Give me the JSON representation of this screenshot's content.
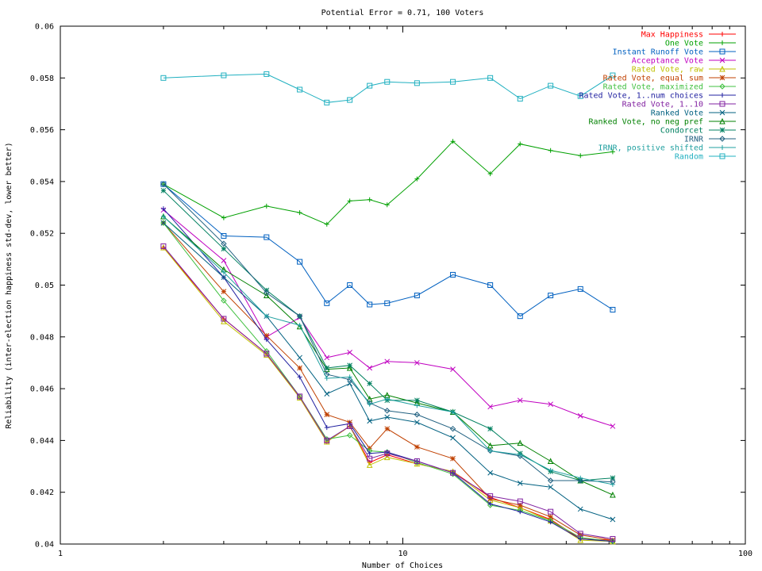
{
  "chart_data": {
    "type": "line",
    "title": "Potential Error = 0.71, 100 Voters",
    "xlabel": "Number of Choices",
    "ylabel": "Reliability (inter-election happiness std-dev, lower better)",
    "x_scale": "log",
    "xlim": [
      1,
      100
    ],
    "ylim": [
      0.04,
      0.06
    ],
    "x_ticks": [
      {
        "value": 1,
        "label": "1"
      },
      {
        "value": 10,
        "label": "10"
      },
      {
        "value": 100,
        "label": "100"
      }
    ],
    "y_ticks": [
      {
        "value": 0.04,
        "label": "0.04"
      },
      {
        "value": 0.042,
        "label": "0.042"
      },
      {
        "value": 0.044,
        "label": "0.044"
      },
      {
        "value": 0.046,
        "label": "0.046"
      },
      {
        "value": 0.048,
        "label": "0.048"
      },
      {
        "value": 0.05,
        "label": "0.05"
      },
      {
        "value": 0.052,
        "label": "0.052"
      },
      {
        "value": 0.054,
        "label": "0.054"
      },
      {
        "value": 0.056,
        "label": "0.056"
      },
      {
        "value": 0.058,
        "label": "0.058"
      },
      {
        "value": 0.06,
        "label": "0.06"
      }
    ],
    "legend_position": "top-right",
    "x": [
      2,
      3,
      4,
      5,
      6,
      7,
      8,
      9,
      11,
      14,
      18,
      22,
      27,
      33,
      41
    ],
    "series": [
      {
        "name": "Max Happiness",
        "color": "#ff0000",
        "marker": "plus",
        "values": [
          0.05145,
          0.0487,
          0.04735,
          0.04565,
          0.04395,
          0.04455,
          0.04315,
          0.04345,
          0.0431,
          0.0428,
          0.0418,
          0.0414,
          0.04095,
          0.0402,
          0.04015
        ]
      },
      {
        "name": "One Vote",
        "color": "#00a000",
        "marker": "plus",
        "values": [
          0.0539,
          0.0526,
          0.05305,
          0.0528,
          0.05235,
          0.05325,
          0.0533,
          0.0531,
          0.0541,
          0.05555,
          0.0543,
          0.05545,
          0.0552,
          0.055,
          0.05515
        ]
      },
      {
        "name": "Instant Runoff Vote",
        "color": "#0060c0",
        "marker": "square",
        "values": [
          0.0539,
          0.0519,
          0.05185,
          0.0509,
          0.0493,
          0.05,
          0.04925,
          0.0493,
          0.0496,
          0.0504,
          0.05,
          0.0488,
          0.0496,
          0.04985,
          0.04905
        ]
      },
      {
        "name": "Acceptance Vote",
        "color": "#c000c0",
        "marker": "x",
        "values": [
          0.0529,
          0.05095,
          0.048,
          0.04875,
          0.0472,
          0.0474,
          0.0468,
          0.04705,
          0.047,
          0.04675,
          0.0453,
          0.04555,
          0.0454,
          0.04495,
          0.04455
        ]
      },
      {
        "name": "Rated Vote, raw",
        "color": "#c0c000",
        "marker": "triangle",
        "values": [
          0.05145,
          0.0486,
          0.0473,
          0.04565,
          0.04395,
          0.04455,
          0.04305,
          0.04335,
          0.0431,
          0.0428,
          0.0417,
          0.0414,
          0.0409,
          0.04015,
          0.0401
        ]
      },
      {
        "name": "Rated Vote, equal sum",
        "color": "#c04000",
        "marker": "star",
        "values": [
          0.0524,
          0.04975,
          0.04805,
          0.0468,
          0.045,
          0.0447,
          0.0437,
          0.04445,
          0.04375,
          0.0433,
          0.04175,
          0.0415,
          0.04105,
          0.04035,
          0.04015
        ]
      },
      {
        "name": "Rated Vote, maximized",
        "color": "#40c040",
        "marker": "diamond",
        "values": [
          0.0524,
          0.0494,
          0.04745,
          0.0457,
          0.04405,
          0.0442,
          0.0436,
          0.04355,
          0.04315,
          0.0427,
          0.0415,
          0.0413,
          0.0409,
          0.04025,
          0.0401
        ]
      },
      {
        "name": "Rated Vote, 1..num choices",
        "color": "#2020a0",
        "marker": "plus",
        "values": [
          0.05295,
          0.0503,
          0.0479,
          0.04645,
          0.0445,
          0.04465,
          0.0435,
          0.04355,
          0.0432,
          0.04275,
          0.04155,
          0.04125,
          0.04085,
          0.0402,
          0.0401
        ]
      },
      {
        "name": "Rated Vote, 1..10",
        "color": "#8020a0",
        "marker": "square",
        "values": [
          0.0515,
          0.0487,
          0.04735,
          0.0457,
          0.044,
          0.04455,
          0.0433,
          0.0435,
          0.0432,
          0.04275,
          0.04185,
          0.04165,
          0.04125,
          0.0404,
          0.0402
        ]
      },
      {
        "name": "Ranked Vote",
        "color": "#006080",
        "marker": "x",
        "values": [
          0.0524,
          0.0503,
          0.0488,
          0.0472,
          0.0458,
          0.0462,
          0.04475,
          0.0449,
          0.0447,
          0.0441,
          0.04275,
          0.04235,
          0.0422,
          0.04135,
          0.04095
        ]
      },
      {
        "name": "Ranked Vote, no neg pref",
        "color": "#008000",
        "marker": "triangle",
        "values": [
          0.05265,
          0.0506,
          0.0496,
          0.0484,
          0.04675,
          0.0468,
          0.0456,
          0.04575,
          0.04545,
          0.0451,
          0.0438,
          0.0439,
          0.0432,
          0.04245,
          0.0419
        ]
      },
      {
        "name": "Condorcet",
        "color": "#008060",
        "marker": "star",
        "values": [
          0.05365,
          0.0514,
          0.0498,
          0.0488,
          0.0468,
          0.0469,
          0.0462,
          0.04555,
          0.04555,
          0.0451,
          0.04445,
          0.0435,
          0.0428,
          0.04245,
          0.04255
        ]
      },
      {
        "name": "IRNR",
        "color": "#206080",
        "marker": "diamond",
        "values": [
          0.0539,
          0.0516,
          0.0497,
          0.0488,
          0.04655,
          0.04635,
          0.04545,
          0.04515,
          0.045,
          0.04445,
          0.0436,
          0.0434,
          0.04245,
          0.04245,
          0.0424
        ]
      },
      {
        "name": "IRNR, positive shifted",
        "color": "#20a0a0",
        "marker": "plus",
        "values": [
          0.05265,
          0.0505,
          0.0488,
          0.04845,
          0.0464,
          0.04645,
          0.0454,
          0.0456,
          0.04535,
          0.0451,
          0.0436,
          0.04345,
          0.04285,
          0.04255,
          0.0423
        ]
      },
      {
        "name": "Random",
        "color": "#20b0c0",
        "marker": "square",
        "values": [
          0.058,
          0.0581,
          0.05815,
          0.05755,
          0.05705,
          0.05715,
          0.0577,
          0.05785,
          0.0578,
          0.05785,
          0.058,
          0.0572,
          0.0577,
          0.0573,
          0.0581
        ]
      }
    ]
  }
}
